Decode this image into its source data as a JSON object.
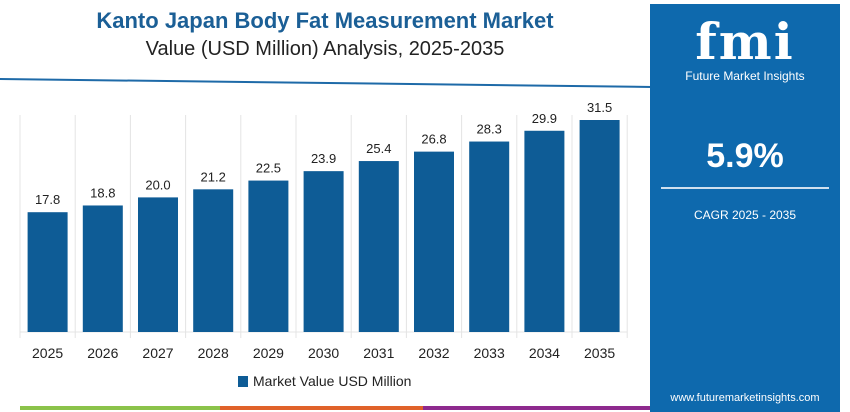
{
  "chart_data": {
    "type": "bar",
    "title": "Kanto Japan Body Fat Measurement Market",
    "subtitle": "Value (USD Million) Analysis, 2025-2035",
    "categories": [
      "2025",
      "2026",
      "2027",
      "2028",
      "2029",
      "2030",
      "2031",
      "2032",
      "2033",
      "2034",
      "2035"
    ],
    "series": [
      {
        "name": "Market Value USD Million",
        "values": [
          17.8,
          18.8,
          20.0,
          21.2,
          22.5,
          23.9,
          25.4,
          26.8,
          28.3,
          29.9,
          31.5
        ]
      }
    ],
    "ylim": [
      0,
      32
    ],
    "grid": "vertical",
    "legend": "bottom",
    "bar_color": "#0e5c96"
  },
  "panel": {
    "logo": "fmi",
    "brand": "Future Market Insights",
    "cagr": "5.9%",
    "cagr_label": "CAGR 2025 - 2035",
    "url": "www.futuremarketinsights.com",
    "color": "#0e69ad"
  },
  "footer_colors": [
    "#8bc34a",
    "#e0622a",
    "#8e2a8e"
  ]
}
